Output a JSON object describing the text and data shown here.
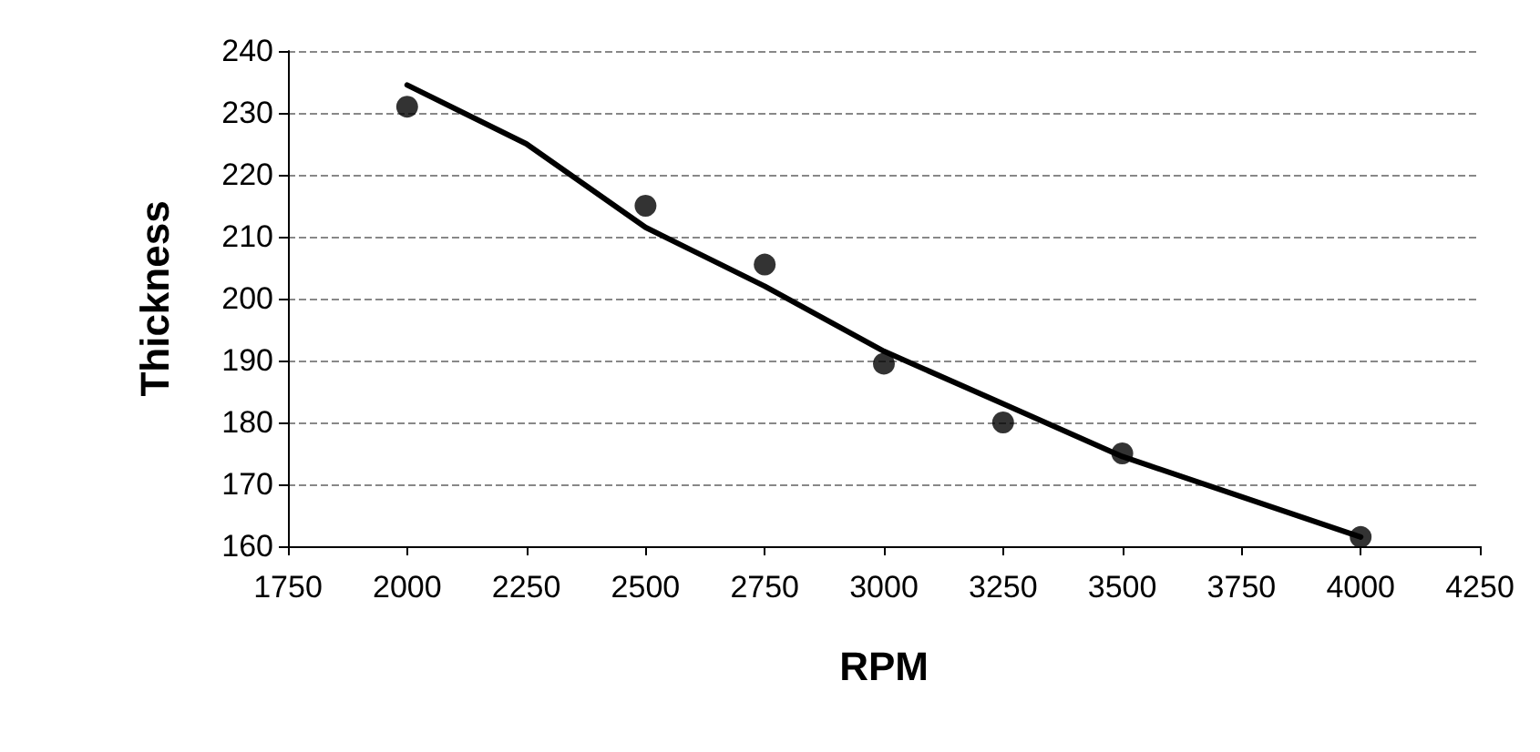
{
  "chart_data": {
    "type": "scatter",
    "xlabel": "RPM",
    "ylabel": "Thickness",
    "x": [
      2000,
      2500,
      2750,
      3000,
      3250,
      3500,
      4000
    ],
    "series": [
      {
        "color": "#000000",
        "marker": "circle",
        "values": [
          231,
          215,
          205.5,
          189.5,
          180,
          175,
          161.5
        ]
      },
      {
        "type": "line",
        "color": "#000000",
        "marker": "none",
        "x": [
          2000,
          2250,
          2500,
          2750,
          3000,
          3250,
          3500,
          3750,
          4000
        ],
        "values": [
          234.5,
          225,
          211.5,
          202,
          191.5,
          183,
          174.5,
          168,
          161.5
        ]
      }
    ],
    "xlim": [
      1750,
      4250
    ],
    "xticks": [
      1750,
      2000,
      2250,
      2500,
      2750,
      3000,
      3250,
      3500,
      3750,
      4000,
      4250
    ],
    "ylim": [
      160,
      240
    ],
    "yticks": [
      160,
      170,
      180,
      190,
      200,
      210,
      220,
      230,
      240
    ],
    "grid": "y"
  }
}
